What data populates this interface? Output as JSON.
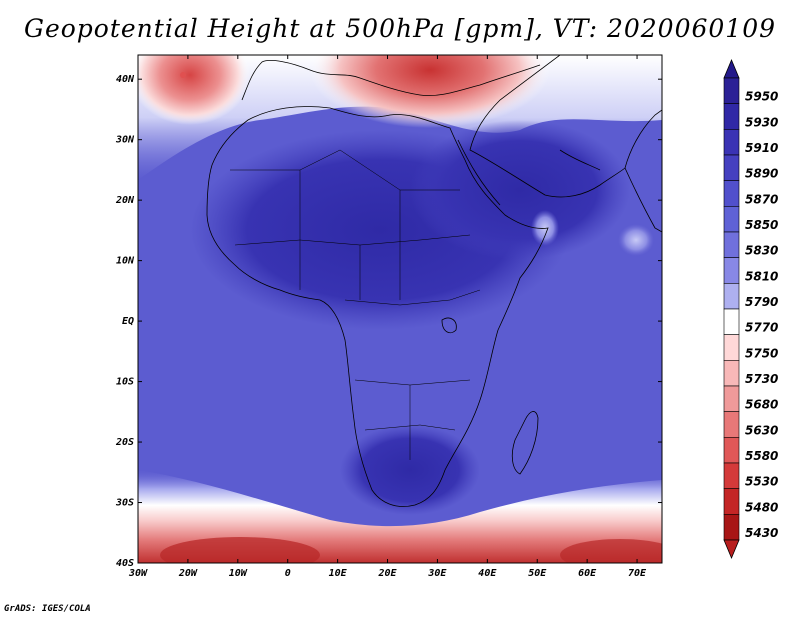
{
  "title": "Geopotential Height at 500hPa [gpm], VT: 2020060109",
  "credit": "GrADS: IGES/COLA",
  "map": {
    "lon_labels": [
      "30W",
      "20W",
      "10W",
      "0",
      "10E",
      "20E",
      "30E",
      "40E",
      "50E",
      "60E",
      "70E"
    ],
    "lat_labels": [
      "40N",
      "30N",
      "20N",
      "10N",
      "EQ",
      "10S",
      "20S",
      "30S",
      "40S"
    ],
    "lon_range": [
      -30,
      75
    ],
    "lat_range": [
      -40,
      44
    ]
  },
  "colorbar": {
    "levels": [
      "5950",
      "5930",
      "5910",
      "5890",
      "5870",
      "5850",
      "5830",
      "5810",
      "5790",
      "5770",
      "5750",
      "5730",
      "5680",
      "5630",
      "5580",
      "5530",
      "5480",
      "5430"
    ],
    "colors": [
      "#2b2196",
      "#3028a6",
      "#3a33b4",
      "#4540c0",
      "#5150cc",
      "#5f62d6",
      "#7070dc",
      "#8888e6",
      "#aeb0f0",
      "#ffffff",
      "#ffd8d8",
      "#f8b8b8",
      "#f09a9a",
      "#e87878",
      "#e05858",
      "#d43a3a",
      "#c42626",
      "#a81616"
    ],
    "top_arrow_color": "#23198a",
    "bottom_arrow_color": "#b81e1e"
  },
  "field_colors": {
    "deep_blue": "#3a34b2",
    "mid_blue": "#4b48c2",
    "light_blue": "#6b6ad6",
    "pale_blue": "#a6a8ee",
    "white": "#ffffff",
    "pale_red": "#f7c4c4",
    "red": "#e07070",
    "dark_red": "#c03030",
    "coast": "#000000"
  }
}
